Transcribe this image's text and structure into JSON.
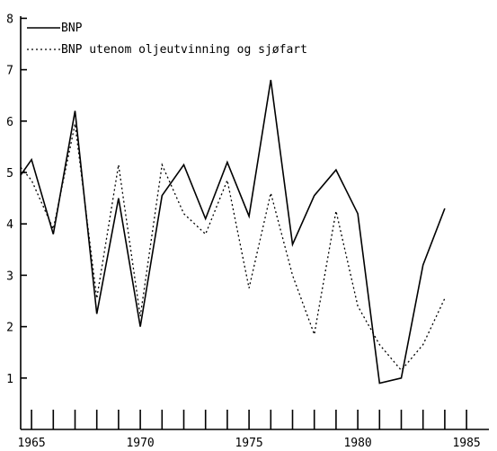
{
  "chart_data": {
    "type": "line",
    "title": "",
    "xlabel": "",
    "ylabel": "",
    "xlim": [
      1964.5,
      1985
    ],
    "ylim": [
      0,
      8
    ],
    "x_ticks": [
      1965,
      1970,
      1975,
      1980,
      1985
    ],
    "y_ticks": [
      1,
      2,
      3,
      4,
      5,
      6,
      7,
      8
    ],
    "grid": false,
    "legend_position": "top-left",
    "x": [
      1964.5,
      1965,
      1966,
      1967,
      1968,
      1969,
      1970,
      1971,
      1972,
      1973,
      1974,
      1975,
      1976,
      1977,
      1978,
      1979,
      1980,
      1981,
      1982,
      1983,
      1984
    ],
    "series": [
      {
        "name": "BNP",
        "style": "solid",
        "values": [
          4.95,
          5.25,
          3.8,
          6.2,
          2.25,
          4.5,
          2.0,
          4.55,
          5.15,
          4.1,
          5.2,
          4.15,
          6.8,
          3.6,
          4.55,
          5.05,
          4.2,
          0.9,
          1.0,
          3.2,
          4.3
        ]
      },
      {
        "name": "BNP utenom oljeutvinning og sjøfart",
        "style": "dotted",
        "values": [
          5.1,
          4.85,
          3.9,
          5.95,
          2.55,
          5.15,
          2.2,
          5.15,
          4.2,
          3.8,
          4.85,
          2.75,
          4.6,
          3.0,
          1.85,
          4.25,
          2.4,
          1.65,
          1.15,
          1.65,
          2.55
        ]
      }
    ]
  }
}
